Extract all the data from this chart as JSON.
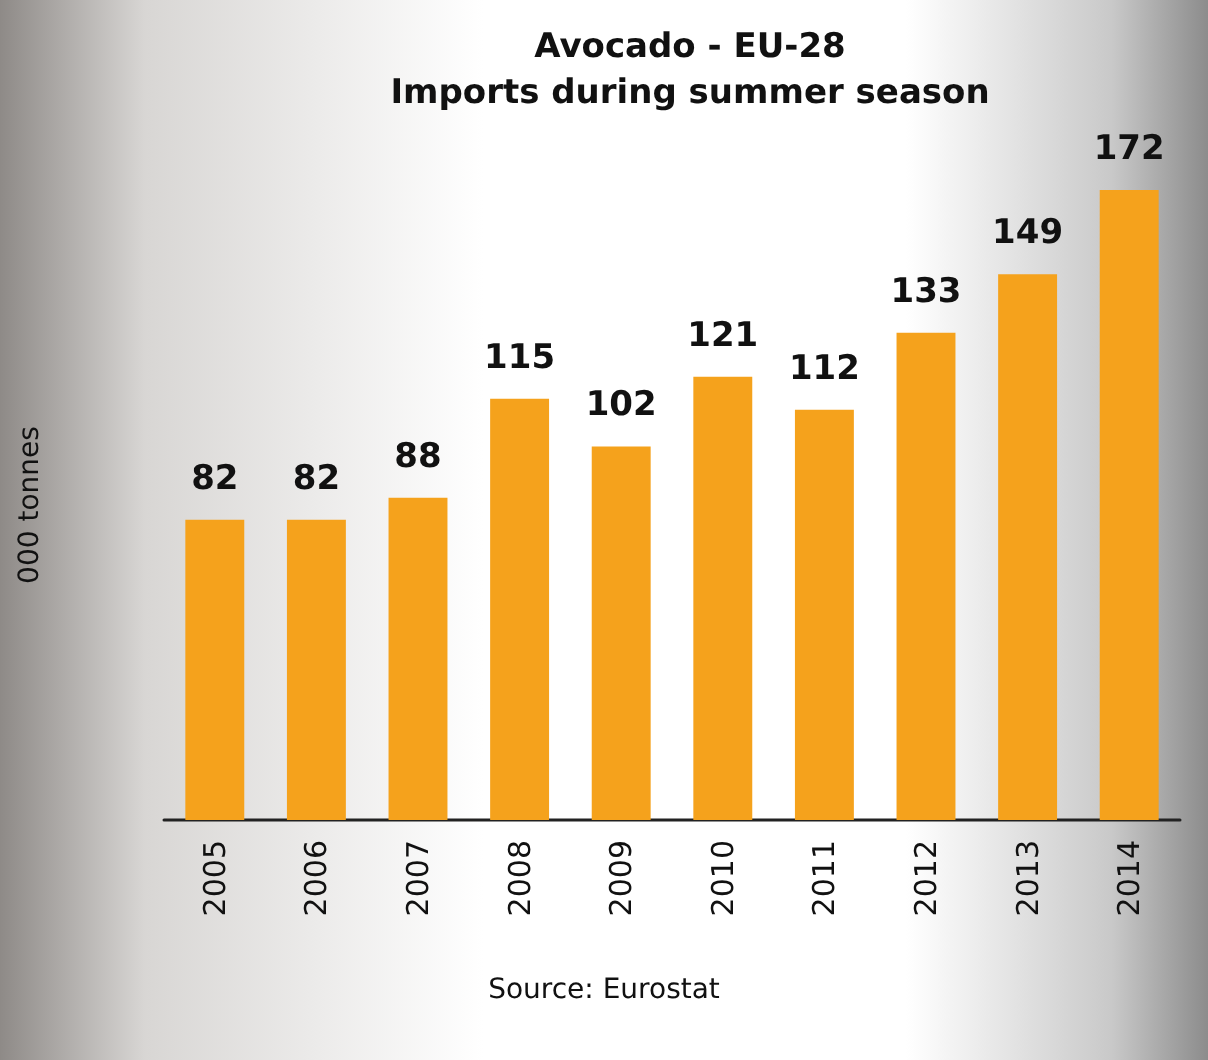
{
  "chart_data": {
    "type": "bar",
    "title": "Avocado - EU-28",
    "subtitle": "Imports during summer season",
    "ylabel": "000 tonnes",
    "categories": [
      "2005",
      "2006",
      "2007",
      "2008",
      "2009",
      "2010",
      "2011",
      "2012",
      "2013",
      "2014"
    ],
    "values": [
      82,
      82,
      88,
      115,
      102,
      121,
      112,
      133,
      149,
      172
    ],
    "color": "#f5a21c",
    "data_labels": true,
    "tick_labels": "x",
    "grid": false,
    "annotations": [
      "Source: Eurostat"
    ]
  }
}
